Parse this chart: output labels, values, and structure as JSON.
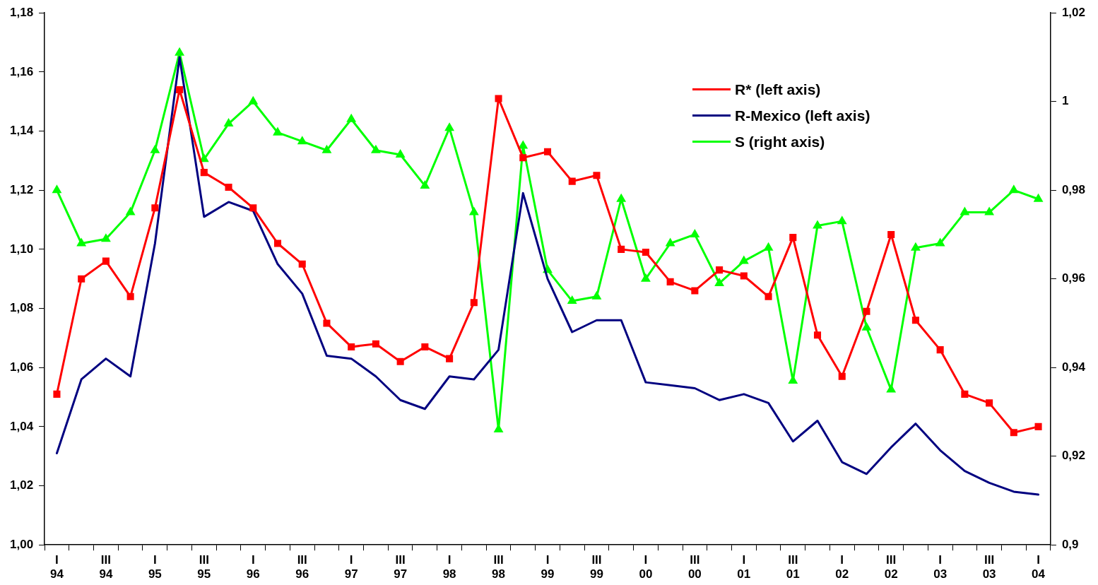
{
  "chart_data": {
    "type": "line",
    "categories": [
      "I\n94",
      null,
      "III\n94",
      null,
      "I\n95",
      null,
      "III\n95",
      null,
      "I\n96",
      null,
      "III\n96",
      null,
      "I\n97",
      null,
      "III\n97",
      null,
      "I\n98",
      null,
      "III\n98",
      null,
      "I\n99",
      null,
      "III\n99",
      null,
      "I\n00",
      null,
      "III\n00",
      null,
      "I\n01",
      null,
      "III\n01",
      null,
      "I\n02",
      null,
      "III\n02",
      null,
      "I\n03",
      null,
      "III\n03",
      null,
      "I\n04"
    ],
    "series": [
      {
        "name": "R* (left axis)",
        "color": "#ff0000",
        "marker": "square",
        "values": [
          1.051,
          1.09,
          1.096,
          1.084,
          1.114,
          1.154,
          1.126,
          1.121,
          1.114,
          1.102,
          1.095,
          1.075,
          1.067,
          1.068,
          1.062,
          1.067,
          1.063,
          1.082,
          1.151,
          1.131,
          1.133,
          1.123,
          1.125,
          1.1,
          1.099,
          1.089,
          1.086,
          1.093,
          1.091,
          1.084,
          1.104,
          1.071,
          1.057,
          1.079,
          1.105,
          1.076,
          1.066,
          1.051,
          1.048,
          1.038,
          1.04
        ]
      },
      {
        "name": "R-Mexico (left axis)",
        "color": "#000080",
        "marker": "none",
        "values": [
          1.031,
          1.056,
          1.063,
          1.057,
          1.102,
          1.165,
          1.111,
          1.116,
          1.113,
          1.095,
          1.085,
          1.064,
          1.063,
          1.057,
          1.049,
          1.046,
          1.057,
          1.056,
          1.066,
          1.119,
          1.09,
          1.072,
          1.076,
          1.076,
          1.055,
          1.054,
          1.053,
          1.049,
          1.051,
          1.048,
          1.035,
          1.042,
          1.028,
          1.024,
          1.033,
          1.041,
          1.032,
          1.025,
          1.021,
          1.018,
          1.017
        ]
      },
      {
        "name": "S (right axis)",
        "color": "#00ff00",
        "marker": "triangle",
        "axis": "y2",
        "values": [
          0.98,
          0.968,
          0.969,
          0.975,
          0.989,
          1.011,
          0.987,
          0.995,
          1.0,
          0.993,
          0.991,
          0.989,
          0.996,
          0.989,
          0.988,
          0.981,
          0.994,
          0.975,
          0.926,
          0.99,
          0.962,
          0.955,
          0.956,
          0.978,
          0.96,
          0.968,
          0.97,
          0.959,
          0.964,
          0.967,
          0.937,
          0.972,
          0.973,
          0.949,
          0.935,
          0.967,
          0.968,
          0.975,
          0.975,
          0.98,
          0.978
        ]
      }
    ],
    "ylim": [
      1.0,
      1.18
    ],
    "yticks": [
      {
        "value": 1.0,
        "label": "1,00"
      },
      {
        "value": 1.02,
        "label": "1,02"
      },
      {
        "value": 1.04,
        "label": "1,04"
      },
      {
        "value": 1.06,
        "label": "1,06"
      },
      {
        "value": 1.08,
        "label": "1,08"
      },
      {
        "value": 1.1,
        "label": "1,10"
      },
      {
        "value": 1.12,
        "label": "1,12"
      },
      {
        "value": 1.14,
        "label": "1,14"
      },
      {
        "value": 1.16,
        "label": "1,16"
      },
      {
        "value": 1.18,
        "label": "1,18"
      }
    ],
    "y2lim": [
      0.9,
      1.02
    ],
    "y2ticks": [
      {
        "value": 0.9,
        "label": "0,9"
      },
      {
        "value": 0.92,
        "label": "0,92"
      },
      {
        "value": 0.94,
        "label": "0,94"
      },
      {
        "value": 0.96,
        "label": "0,96"
      },
      {
        "value": 0.98,
        "label": "0,98"
      },
      1,
      {
        "value": 1.02,
        "label": "1,02"
      }
    ],
    "grid": false,
    "legend": "top right",
    "line_style": "solid"
  }
}
